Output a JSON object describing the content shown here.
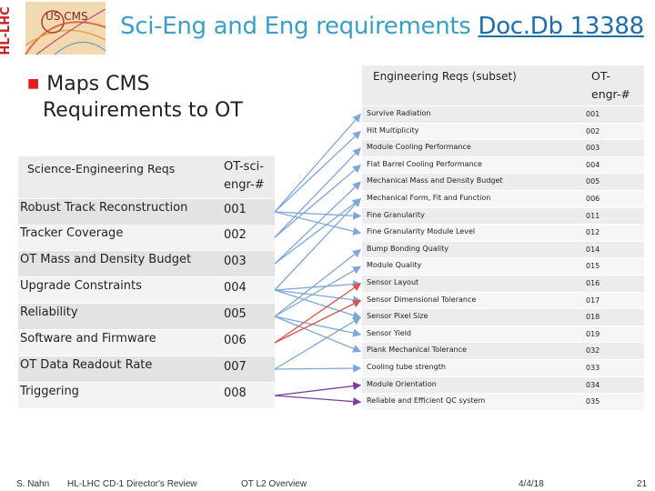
{
  "logo": {
    "vertical_text": "HL-LHC",
    "mark_text": "US CMS"
  },
  "title": {
    "main": "Sci-Eng and Eng requirements ",
    "link": "Doc.Db 13388"
  },
  "bullet": {
    "line1": "Maps CMS",
    "line2": "Requirements to OT"
  },
  "left_table": {
    "header_name": "Science-Engineering Reqs",
    "header_code_line1": "OT-sci-",
    "header_code_line2": "engr-#",
    "rows": [
      {
        "name": "Robust Track Reconstruction",
        "code": "001"
      },
      {
        "name": "Tracker Coverage",
        "code": "002"
      },
      {
        "name": "OT Mass and Density Budget",
        "code": "003"
      },
      {
        "name": "Upgrade Constraints",
        "code": "004"
      },
      {
        "name": "Reliability",
        "code": "005"
      },
      {
        "name": "Software and Firmware",
        "code": "006"
      },
      {
        "name": "OT Data Readout Rate",
        "code": "007"
      },
      {
        "name": "Triggering",
        "code": "008"
      }
    ]
  },
  "right_table": {
    "header_name": "Engineering Reqs (subset)",
    "header_code_line1": "OT-",
    "header_code_line2": "engr-#",
    "rows": [
      {
        "name": "Survive Radiation",
        "code": "001"
      },
      {
        "name": "Hit Multiplicity",
        "code": "002"
      },
      {
        "name": "Module Cooling Performance",
        "code": "003"
      },
      {
        "name": "Flat Barrel Cooling Performance",
        "code": "004"
      },
      {
        "name": "Mechanical Mass and Density Budget",
        "code": "005"
      },
      {
        "name": "Mechanical Form, Fit and Function",
        "code": "006"
      },
      {
        "name": "Fine Granularity",
        "code": "011"
      },
      {
        "name": "Fine Granularity Module Level",
        "code": "012"
      },
      {
        "name": "Bump Bonding Quality",
        "code": "014"
      },
      {
        "name": "Module Quality",
        "code": "015"
      },
      {
        "name": "Sensor Layout",
        "code": "016"
      },
      {
        "name": "Sensor Dimensional Tolerance",
        "code": "017"
      },
      {
        "name": "Sensor Pixel Size",
        "code": "018"
      },
      {
        "name": "Sensor Yield",
        "code": "019"
      },
      {
        "name": "Plank Mechanical Tolerance",
        "code": "032"
      },
      {
        "name": "Cooling tube strength",
        "code": "033"
      },
      {
        "name": "Module Orientation",
        "code": "034"
      },
      {
        "name": "Reliable and Efficient QC system",
        "code": "035"
      }
    ]
  },
  "footer": {
    "author": "S. Nahn",
    "event": "HL-LHC CD-1 Director's Review",
    "talk": "OT L2 Overview",
    "date": "4/4/18",
    "page": "21"
  },
  "colors": {
    "title": "#3b9ec8",
    "arrow_blue": "#7ea6d8",
    "arrow_red": "#d9534f",
    "arrow_purple": "#7b3f9e",
    "bullet": "#e2201a"
  }
}
